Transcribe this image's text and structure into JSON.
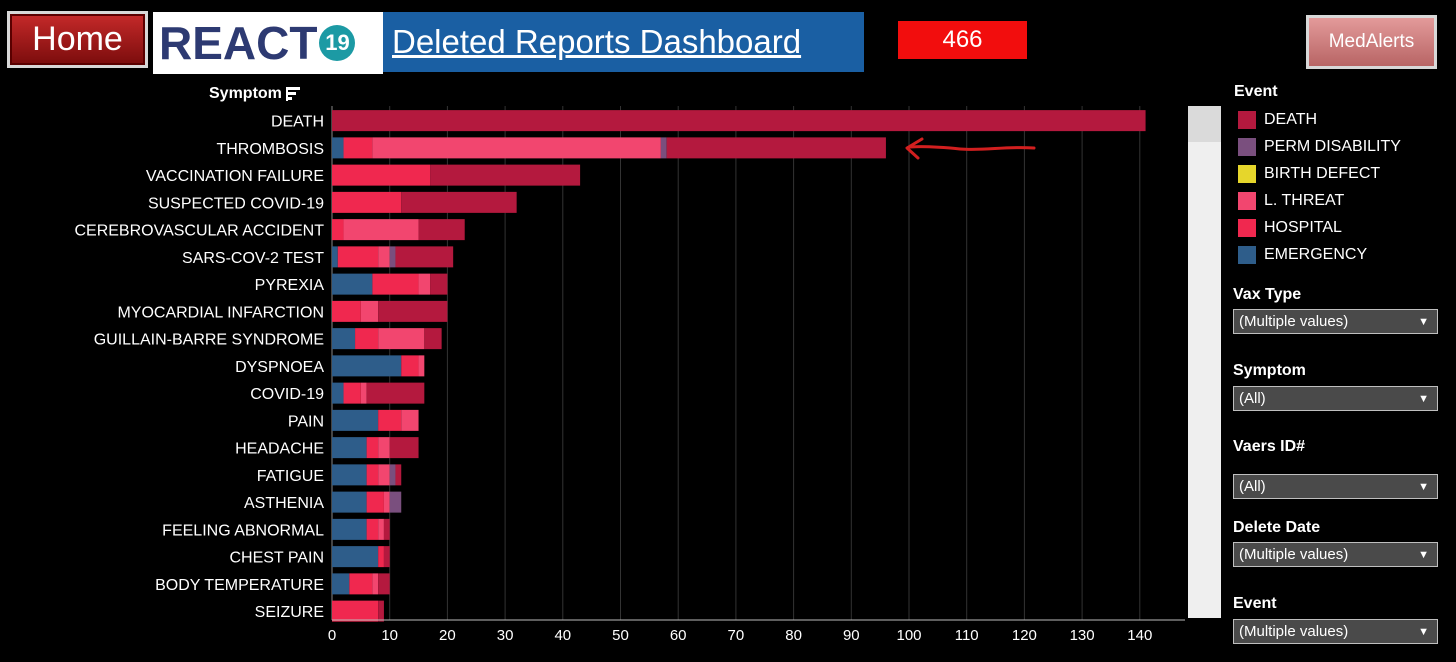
{
  "header": {
    "home_label": "Home",
    "logo_text": "REACT",
    "logo_badge": "19",
    "title": "Deleted Reports Dashboard",
    "count": "466",
    "medalerts_label": "MedAlerts"
  },
  "colors": {
    "DEATH": "#b4193e",
    "PERM DISABILITY": "#7a4f7e",
    "BIRTH DEFECT": "#e6d62b",
    "L. THREAT": "#f2466f",
    "HOSPITAL": "#f0284f",
    "EMERGENCY": "#2e5d8a"
  },
  "panel": {
    "event_legend_title": "Event",
    "legend": [
      "DEATH",
      "PERM DISABILITY",
      "BIRTH DEFECT",
      "L. THREAT",
      "HOSPITAL",
      "EMERGENCY"
    ],
    "filters": [
      {
        "title": "Vax Type",
        "value": "(Multiple values)"
      },
      {
        "title": "Symptom",
        "value": "(All)"
      },
      {
        "title": "Vaers ID#",
        "value": "(All)"
      },
      {
        "title": "Delete Date",
        "value": "(Multiple values)"
      },
      {
        "title": "Event",
        "value": "(Multiple values)"
      }
    ]
  },
  "chart_data": {
    "type": "bar",
    "orientation": "horizontal",
    "stacked": true,
    "ylabel": "Symptom",
    "xlim": [
      0,
      148
    ],
    "xticks": [
      0,
      10,
      20,
      30,
      40,
      50,
      60,
      70,
      80,
      90,
      100,
      110,
      120,
      130,
      140
    ],
    "grid": true,
    "stack_order": [
      "EMERGENCY",
      "HOSPITAL",
      "L. THREAT",
      "PERM DISABILITY",
      "DEATH"
    ],
    "categories": [
      "DEATH",
      "THROMBOSIS",
      "VACCINATION FAILURE",
      "SUSPECTED COVID-19",
      "CEREBROVASCULAR ACCIDENT",
      "SARS-COV-2 TEST",
      "PYREXIA",
      "MYOCARDIAL INFARCTION",
      "GUILLAIN-BARRE SYNDROME",
      "DYSPNOEA",
      "COVID-19",
      "PAIN",
      "HEADACHE",
      "FATIGUE",
      "ASTHENIA",
      "FEELING ABNORMAL",
      "CHEST PAIN",
      "BODY TEMPERATURE",
      "SEIZURE"
    ],
    "series": [
      {
        "name": "EMERGENCY",
        "values": [
          0,
          2,
          0,
          0,
          0,
          1,
          7,
          0,
          4,
          12,
          2,
          8,
          6,
          6,
          6,
          6,
          8,
          3,
          0
        ]
      },
      {
        "name": "HOSPITAL",
        "values": [
          0,
          5,
          17,
          12,
          2,
          7,
          8,
          5,
          4,
          3,
          3,
          4,
          2,
          2,
          3,
          2,
          1,
          4,
          8
        ]
      },
      {
        "name": "L. THREAT",
        "values": [
          0,
          50,
          0,
          0,
          13,
          2,
          2,
          3,
          8,
          1,
          1,
          3,
          2,
          2,
          1,
          1,
          0,
          1,
          0
        ]
      },
      {
        "name": "PERM DISABILITY",
        "values": [
          0,
          1,
          0,
          0,
          0,
          1,
          0,
          0,
          0,
          0,
          0,
          0,
          0,
          1,
          2,
          0,
          0,
          0,
          0
        ]
      },
      {
        "name": "DEATH",
        "values": [
          141,
          38,
          26,
          20,
          8,
          10,
          3,
          12,
          3,
          0,
          10,
          0,
          5,
          1,
          0,
          1,
          1,
          2,
          1
        ]
      }
    ]
  }
}
